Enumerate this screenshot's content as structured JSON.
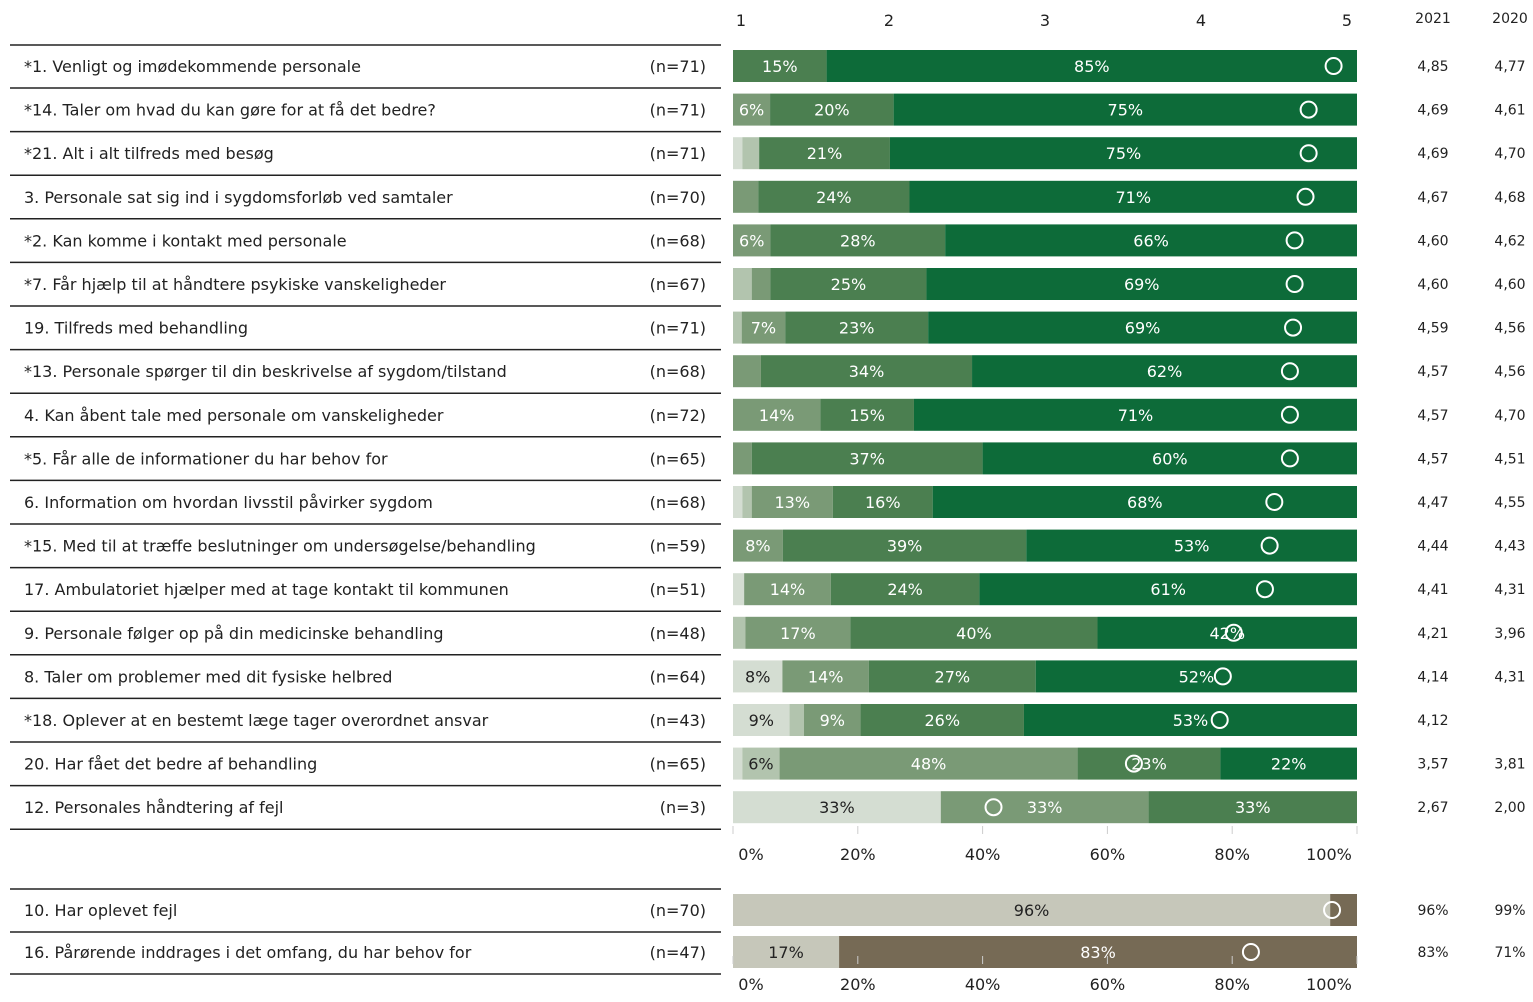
{
  "chart_data": {
    "type": "bar",
    "orientation": "horizontal",
    "stacked": true,
    "percent": true,
    "score_axis": {
      "ticks": [
        "1",
        "2",
        "3",
        "4",
        "5"
      ],
      "range": [
        1,
        5
      ]
    },
    "percent_axis_ticks": [
      "0%",
      "20%",
      "40%",
      "60%",
      "80%",
      "100%"
    ],
    "year_headers": [
      "2021",
      "2020"
    ],
    "colors": {
      "scale": [
        "#d4ddd2",
        "#b2c4ae",
        "#7a9a76",
        "#4b7f50",
        "#0d6b39"
      ],
      "binary": [
        "#c6c7ba",
        "#766a55"
      ]
    },
    "rows": [
      {
        "label": "*1. Venligt og imødekommende personale",
        "n": "(n=71)",
        "values": [
          0,
          0,
          0,
          15,
          85
        ],
        "texts": [
          "",
          "",
          "",
          "15%",
          "85%"
        ],
        "mean": 4.85,
        "y2021": "4,85",
        "y2020": "4,77"
      },
      {
        "label": "*14. Taler om hvad du kan gøre for at få det bedre?",
        "n": "(n=71)",
        "values": [
          0,
          0,
          6,
          20,
          75
        ],
        "texts": [
          "",
          "",
          "6%",
          "20%",
          "75%"
        ],
        "mean": 4.69,
        "y2021": "4,69",
        "y2020": "4,61"
      },
      {
        "label": "*21. Alt i alt tilfreds med besøg",
        "n": "(n=71)",
        "values": [
          1.5,
          2.7,
          0,
          21,
          75
        ],
        "texts": [
          "",
          "",
          "",
          "21%",
          "75%"
        ],
        "mean": 4.69,
        "y2021": "4,69",
        "y2020": "4,70"
      },
      {
        "label": "3. Personale sat sig ind i sygdomsforløb ved samtaler",
        "n": "(n=70)",
        "values": [
          0,
          0,
          4,
          24,
          71
        ],
        "texts": [
          "",
          "",
          "",
          "24%",
          "71%"
        ],
        "mean": 4.67,
        "y2021": "4,67",
        "y2020": "4,68"
      },
      {
        "label": "*2. Kan komme i kontakt med personale",
        "n": "(n=68)",
        "values": [
          0,
          0,
          6,
          28,
          66
        ],
        "texts": [
          "",
          "",
          "6%",
          "28%",
          "66%"
        ],
        "mean": 4.6,
        "y2021": "4,60",
        "y2020": "4,62"
      },
      {
        "label": "*7. Får hjælp til at håndtere psykiske vanskeligheder",
        "n": "(n=67)",
        "values": [
          0,
          3,
          3,
          25,
          69
        ],
        "texts": [
          "",
          "",
          "",
          "25%",
          "69%"
        ],
        "mean": 4.6,
        "y2021": "4,60",
        "y2020": "4,60"
      },
      {
        "label": "19. Tilfreds med behandling",
        "n": "(n=71)",
        "values": [
          0,
          1.4,
          7,
          23,
          69
        ],
        "texts": [
          "",
          "",
          "7%",
          "23%",
          "69%"
        ],
        "mean": 4.59,
        "y2021": "4,59",
        "y2020": "4,56"
      },
      {
        "label": "*13. Personale spørger til din beskrivelse af sygdom/tilstand",
        "n": "(n=68)",
        "values": [
          0,
          0,
          4.5,
          34,
          62
        ],
        "texts": [
          "",
          "",
          "",
          "34%",
          "62%"
        ],
        "mean": 4.57,
        "y2021": "4,57",
        "y2020": "4,56"
      },
      {
        "label": "4. Kan åbent tale med personale om vanskeligheder",
        "n": "(n=72)",
        "values": [
          0,
          0,
          14,
          15,
          71
        ],
        "texts": [
          "",
          "",
          "14%",
          "15%",
          "71%"
        ],
        "mean": 4.57,
        "y2021": "4,57",
        "y2020": "4,70"
      },
      {
        "label": "*5. Får alle de informationer du har behov for",
        "n": "(n=65)",
        "values": [
          0,
          0,
          3,
          37,
          60
        ],
        "texts": [
          "",
          "",
          "",
          "37%",
          "60%"
        ],
        "mean": 4.57,
        "y2021": "4,57",
        "y2020": "4,51"
      },
      {
        "label": "6. Information om hvordan livsstil påvirker sygdom",
        "n": "(n=68)",
        "values": [
          1.5,
          1.5,
          13,
          16,
          68
        ],
        "texts": [
          "",
          "",
          "13%",
          "16%",
          "68%"
        ],
        "mean": 4.47,
        "y2021": "4,47",
        "y2020": "4,55"
      },
      {
        "label": "*15. Med til at træffe beslutninger om undersøgelse/behandling",
        "n": "(n=59)",
        "values": [
          0,
          0,
          8,
          39,
          53
        ],
        "texts": [
          "",
          "",
          "8%",
          "39%",
          "53%"
        ],
        "mean": 4.44,
        "y2021": "4,44",
        "y2020": "4,43"
      },
      {
        "label": "17. Ambulatoriet hjælper med at tage kontakt til kommunen",
        "n": "(n=51)",
        "values": [
          1.8,
          0,
          14,
          24,
          61
        ],
        "texts": [
          "",
          "",
          "14%",
          "24%",
          "61%"
        ],
        "mean": 4.41,
        "y2021": "4,41",
        "y2020": "4,31"
      },
      {
        "label": "9. Personale følger op på din medicinske behandling",
        "n": "(n=48)",
        "values": [
          0,
          2,
          17,
          40,
          42
        ],
        "texts": [
          "",
          "",
          "17%",
          "40%",
          "42%"
        ],
        "mean": 4.21,
        "y2021": "4,21",
        "y2020": "3,96"
      },
      {
        "label": "8. Taler om problemer med dit fysiske helbred",
        "n": "(n=64)",
        "values": [
          8,
          0,
          14,
          27,
          52
        ],
        "texts": [
          "8%",
          "",
          "14%",
          "27%",
          "52%"
        ],
        "mean": 4.14,
        "y2021": "4,14",
        "y2020": "4,31"
      },
      {
        "label": "*18. Oplever at en bestemt læge tager overordnet ansvar",
        "n": "(n=43)",
        "values": [
          9,
          2.3,
          9,
          26,
          53
        ],
        "texts": [
          "9%",
          "",
          "9%",
          "26%",
          "53%"
        ],
        "mean": 4.12,
        "y2021": "4,12",
        "y2020": ""
      },
      {
        "label": "20. Har fået det bedre af behandling",
        "n": "(n=65)",
        "values": [
          1.5,
          6,
          48,
          23,
          22
        ],
        "texts": [
          "",
          "6%",
          "48%",
          "23%",
          "22%"
        ],
        "mean": 3.57,
        "y2021": "3,57",
        "y2020": "3,81"
      },
      {
        "label": "12. Personales håndtering af fejl",
        "n": "(n=3)",
        "values": [
          33.3,
          0,
          33.3,
          33.4,
          0
        ],
        "texts": [
          "33%",
          "",
          "33%",
          "33%",
          ""
        ],
        "mean": 2.67,
        "y2021": "2,67",
        "y2020": "2,00"
      }
    ],
    "binary_rows": [
      {
        "label": "10. Har oplevet fejl",
        "n": "(n=70)",
        "values": [
          95.7,
          4.3
        ],
        "texts": [
          "96%",
          ""
        ],
        "marker_pct": 96,
        "y2021": "96%",
        "y2020": "99%"
      },
      {
        "label": "16. Pårørende inddrages i det omfang, du har behov for",
        "n": "(n=47)",
        "values": [
          17,
          83
        ],
        "texts": [
          "17%",
          "83%"
        ],
        "marker_pct": 83,
        "y2021": "83%",
        "y2020": "71%"
      }
    ]
  }
}
